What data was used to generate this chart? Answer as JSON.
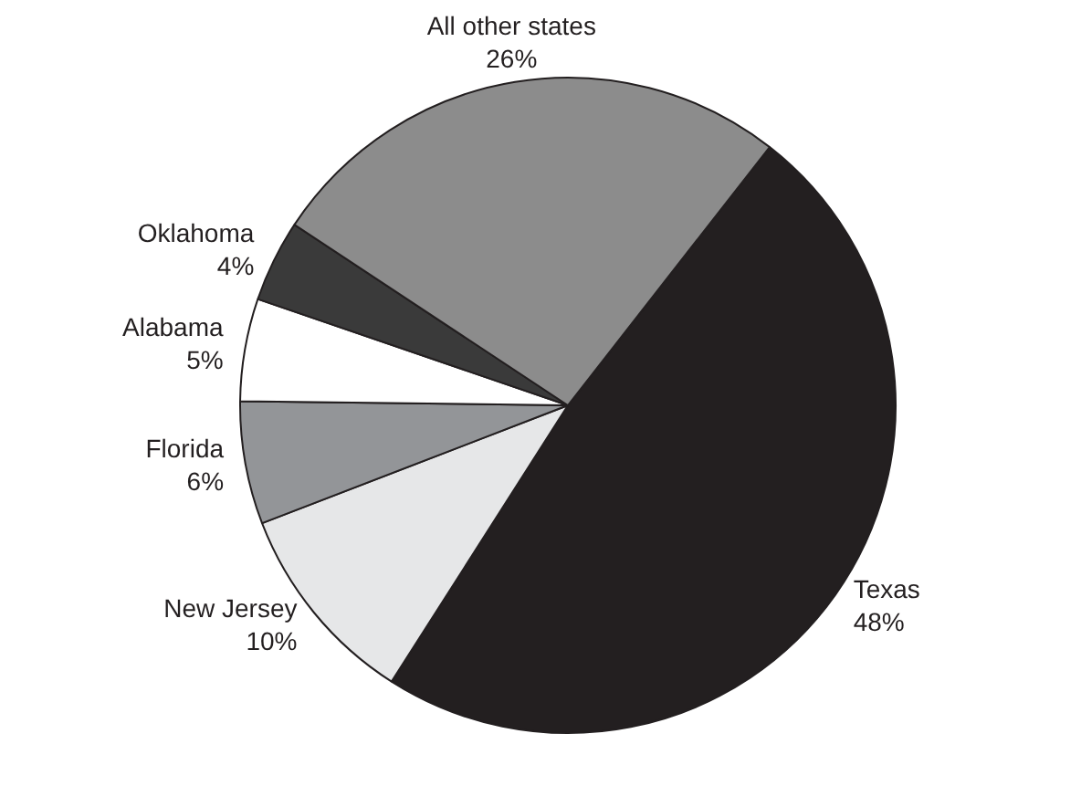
{
  "chart_data": {
    "type": "pie",
    "categories": [
      "Texas",
      "New Jersey",
      "Florida",
      "Alabama",
      "Oklahoma",
      "All other states"
    ],
    "values": [
      48,
      10,
      6,
      5,
      4,
      26
    ],
    "value_labels": [
      "48%",
      "10%",
      "6%",
      "5%",
      "4%",
      "26%"
    ],
    "colors": [
      "#231f20",
      "#e6e7e8",
      "#939598",
      "#ffffff",
      "#3a3a3a",
      "#8c8c8c"
    ],
    "legend": false
  }
}
